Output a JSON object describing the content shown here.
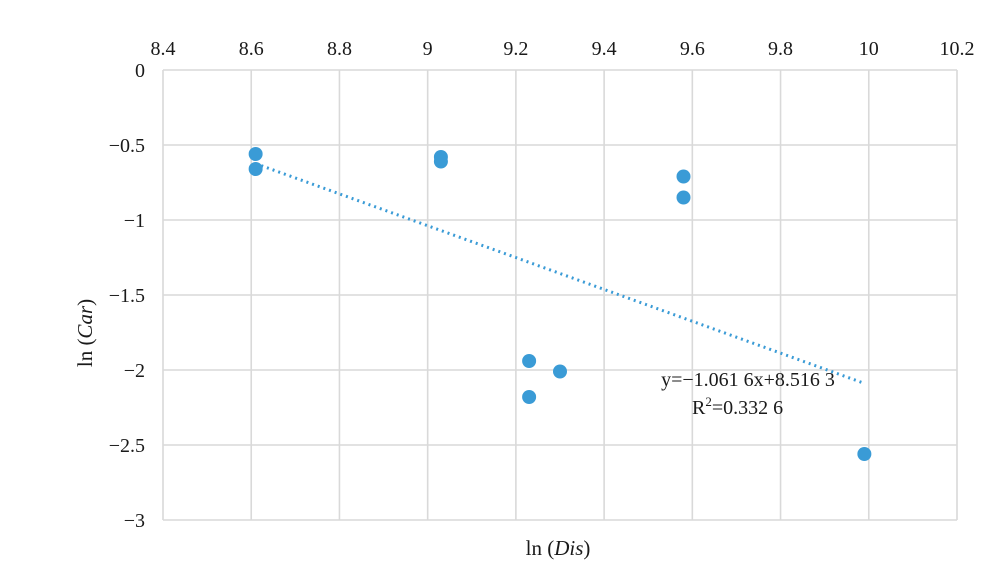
{
  "chart_data": {
    "type": "scatter",
    "x_axis": {
      "label_prefix": "ln (",
      "label_var": "Dis",
      "label_suffix": ")",
      "range": [
        8.4,
        10.2
      ],
      "ticks": [
        "8.4",
        "8.6",
        "8.8",
        "9",
        "9.2",
        "9.4",
        "9.6",
        "9.8",
        "10",
        "10.2"
      ],
      "tick_values": [
        8.4,
        8.6,
        8.8,
        9.0,
        9.2,
        9.4,
        9.6,
        9.8,
        10.0,
        10.2
      ],
      "position": "top"
    },
    "y_axis": {
      "label_prefix": "ln (",
      "label_var": "Car",
      "label_suffix": ")",
      "range": [
        -3,
        0
      ],
      "ticks": [
        "0",
        "−0.5",
        "−1",
        "−1.5",
        "−2",
        "−2.5",
        "−3"
      ],
      "tick_values": [
        0,
        -0.5,
        -1,
        -1.5,
        -2,
        -2.5,
        -3
      ]
    },
    "grid": true,
    "legend": "none",
    "points": [
      {
        "x": 8.61,
        "y": -0.56
      },
      {
        "x": 8.61,
        "y": -0.66
      },
      {
        "x": 9.03,
        "y": -0.58
      },
      {
        "x": 9.03,
        "y": -0.61
      },
      {
        "x": 9.23,
        "y": -1.94
      },
      {
        "x": 9.23,
        "y": -2.18
      },
      {
        "x": 9.3,
        "y": -2.01
      },
      {
        "x": 9.58,
        "y": -0.71
      },
      {
        "x": 9.58,
        "y": -0.85
      },
      {
        "x": 9.99,
        "y": -2.56
      }
    ],
    "trendline": {
      "slope": -1.0616,
      "intercept": 8.5163,
      "x_range": [
        8.61,
        9.99
      ],
      "style": "dotted"
    },
    "annotation": {
      "equation": "y=−1.061 6x+8.516 3",
      "r2_prefix": "R",
      "r2_sup": "2",
      "r2_value": "=0.332 6"
    },
    "colors": {
      "series": "#3a9bd6",
      "grid": "#d9d9d9"
    }
  }
}
